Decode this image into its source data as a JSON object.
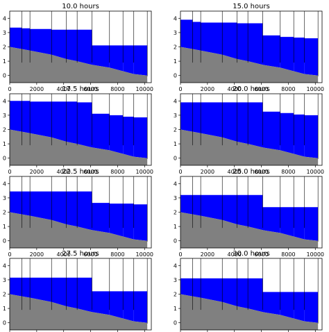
{
  "figure": {
    "background": "#ffffff"
  },
  "colors": {
    "bed": "#808080",
    "water": "#0000ff",
    "walls": "#000000",
    "frame": "#000000"
  },
  "chart_data": [
    {
      "type": "area",
      "title": "10.0 hours",
      "xlim": [
        0,
        10500
      ],
      "ylim": [
        -0.5,
        4.5
      ],
      "xticks": [
        0,
        2000,
        4000,
        6000,
        8000,
        10000
      ],
      "yticks": [
        0,
        1,
        2,
        3,
        4
      ],
      "walls_x": [
        900,
        1500,
        3100,
        4200,
        5000,
        6100,
        7400,
        8400,
        9200
      ],
      "bed": [
        [
          0,
          2.0
        ],
        [
          900,
          1.85
        ],
        [
          1500,
          1.75
        ],
        [
          3100,
          1.45
        ],
        [
          4200,
          1.15
        ],
        [
          5000,
          1.0
        ],
        [
          6100,
          0.75
        ],
        [
          7400,
          0.55
        ],
        [
          8400,
          0.3
        ],
        [
          9200,
          0.1
        ],
        [
          10200,
          0.0
        ]
      ],
      "water": [
        [
          0,
          3.35
        ],
        [
          900,
          3.3
        ],
        [
          1500,
          3.25
        ],
        [
          3100,
          3.2
        ],
        [
          4200,
          3.2
        ],
        [
          5000,
          3.2
        ],
        [
          6100,
          2.1
        ],
        [
          7400,
          2.1
        ],
        [
          8400,
          2.1
        ],
        [
          9200,
          2.1
        ],
        [
          10200,
          2.1
        ]
      ]
    },
    {
      "type": "area",
      "title": "15.0 hours",
      "xlim": [
        0,
        10500
      ],
      "ylim": [
        -0.5,
        4.5
      ],
      "xticks": [
        0,
        2000,
        4000,
        6000,
        8000,
        10000
      ],
      "yticks": [
        0,
        1,
        2,
        3,
        4
      ],
      "walls_x": [
        900,
        1500,
        3100,
        4200,
        5000,
        6100,
        7400,
        8400,
        9200
      ],
      "bed": [
        [
          0,
          2.0
        ],
        [
          900,
          1.85
        ],
        [
          1500,
          1.75
        ],
        [
          3100,
          1.45
        ],
        [
          4200,
          1.15
        ],
        [
          5000,
          1.0
        ],
        [
          6100,
          0.75
        ],
        [
          7400,
          0.55
        ],
        [
          8400,
          0.3
        ],
        [
          9200,
          0.1
        ],
        [
          10200,
          0.0
        ]
      ],
      "water": [
        [
          0,
          3.9
        ],
        [
          900,
          3.75
        ],
        [
          1500,
          3.7
        ],
        [
          3100,
          3.7
        ],
        [
          4200,
          3.65
        ],
        [
          5000,
          3.65
        ],
        [
          6100,
          2.8
        ],
        [
          7400,
          2.7
        ],
        [
          8400,
          2.65
        ],
        [
          9200,
          2.6
        ],
        [
          10200,
          2.6
        ]
      ]
    },
    {
      "type": "area",
      "title": "17.5 hours",
      "xlim": [
        0,
        10500
      ],
      "ylim": [
        -0.5,
        4.5
      ],
      "xticks": [
        0,
        2000,
        4000,
        6000,
        8000,
        10000
      ],
      "yticks": [
        0,
        1,
        2,
        3,
        4
      ],
      "walls_x": [
        900,
        1500,
        3100,
        4200,
        5000,
        6100,
        7400,
        8400,
        9200
      ],
      "bed": [
        [
          0,
          2.0
        ],
        [
          900,
          1.85
        ],
        [
          1500,
          1.75
        ],
        [
          3100,
          1.45
        ],
        [
          4200,
          1.15
        ],
        [
          5000,
          1.0
        ],
        [
          6100,
          0.75
        ],
        [
          7400,
          0.55
        ],
        [
          8400,
          0.3
        ],
        [
          9200,
          0.1
        ],
        [
          10200,
          0.0
        ]
      ],
      "water": [
        [
          0,
          4.0
        ],
        [
          900,
          4.0
        ],
        [
          1500,
          3.95
        ],
        [
          3100,
          3.95
        ],
        [
          4200,
          3.95
        ],
        [
          5000,
          3.9
        ],
        [
          6100,
          3.1
        ],
        [
          7400,
          3.0
        ],
        [
          8400,
          2.9
        ],
        [
          9200,
          2.85
        ],
        [
          10200,
          2.85
        ]
      ]
    },
    {
      "type": "area",
      "title": "20.0 hours",
      "xlim": [
        0,
        10500
      ],
      "ylim": [
        -0.5,
        4.5
      ],
      "xticks": [
        0,
        2000,
        4000,
        6000,
        8000,
        10000
      ],
      "yticks": [
        0,
        1,
        2,
        3,
        4
      ],
      "walls_x": [
        900,
        1500,
        3100,
        4200,
        5000,
        6100,
        7400,
        8400,
        9200
      ],
      "bed": [
        [
          0,
          2.0
        ],
        [
          900,
          1.85
        ],
        [
          1500,
          1.75
        ],
        [
          3100,
          1.45
        ],
        [
          4200,
          1.15
        ],
        [
          5000,
          1.0
        ],
        [
          6100,
          0.75
        ],
        [
          7400,
          0.55
        ],
        [
          8400,
          0.3
        ],
        [
          9200,
          0.1
        ],
        [
          10200,
          0.0
        ]
      ],
      "water": [
        [
          0,
          3.9
        ],
        [
          900,
          3.9
        ],
        [
          1500,
          3.9
        ],
        [
          3100,
          3.9
        ],
        [
          4200,
          3.9
        ],
        [
          5000,
          3.9
        ],
        [
          6100,
          3.25
        ],
        [
          7400,
          3.15
        ],
        [
          8400,
          3.05
        ],
        [
          9200,
          3.0
        ],
        [
          10200,
          3.0
        ]
      ]
    },
    {
      "type": "area",
      "title": "22.5 hours",
      "xlim": [
        0,
        10500
      ],
      "ylim": [
        -0.5,
        4.5
      ],
      "xticks": [
        0,
        2000,
        4000,
        6000,
        8000,
        10000
      ],
      "yticks": [
        0,
        1,
        2,
        3,
        4
      ],
      "walls_x": [
        900,
        1500,
        3100,
        4200,
        5000,
        6100,
        7400,
        8400,
        9200
      ],
      "bed": [
        [
          0,
          2.0
        ],
        [
          900,
          1.85
        ],
        [
          1500,
          1.75
        ],
        [
          3100,
          1.45
        ],
        [
          4200,
          1.15
        ],
        [
          5000,
          1.0
        ],
        [
          6100,
          0.75
        ],
        [
          7400,
          0.55
        ],
        [
          8400,
          0.3
        ],
        [
          9200,
          0.1
        ],
        [
          10200,
          0.0
        ]
      ],
      "water": [
        [
          0,
          3.45
        ],
        [
          900,
          3.45
        ],
        [
          1500,
          3.45
        ],
        [
          3100,
          3.45
        ],
        [
          4200,
          3.45
        ],
        [
          5000,
          3.45
        ],
        [
          6100,
          2.65
        ],
        [
          7400,
          2.6
        ],
        [
          8400,
          2.6
        ],
        [
          9200,
          2.55
        ],
        [
          10200,
          2.55
        ]
      ]
    },
    {
      "type": "area",
      "title": "25.0 hours",
      "xlim": [
        0,
        10500
      ],
      "ylim": [
        -0.5,
        4.5
      ],
      "xticks": [
        0,
        2000,
        4000,
        6000,
        8000,
        10000
      ],
      "yticks": [
        0,
        1,
        2,
        3,
        4
      ],
      "walls_x": [
        900,
        1500,
        3100,
        4200,
        5000,
        6100,
        7400,
        8400,
        9200
      ],
      "bed": [
        [
          0,
          2.0
        ],
        [
          900,
          1.85
        ],
        [
          1500,
          1.75
        ],
        [
          3100,
          1.45
        ],
        [
          4200,
          1.15
        ],
        [
          5000,
          1.0
        ],
        [
          6100,
          0.75
        ],
        [
          7400,
          0.55
        ],
        [
          8400,
          0.3
        ],
        [
          9200,
          0.1
        ],
        [
          10200,
          0.0
        ]
      ],
      "water": [
        [
          0,
          3.2
        ],
        [
          900,
          3.2
        ],
        [
          1500,
          3.2
        ],
        [
          3100,
          3.2
        ],
        [
          4200,
          3.2
        ],
        [
          5000,
          3.2
        ],
        [
          6100,
          2.35
        ],
        [
          7400,
          2.35
        ],
        [
          8400,
          2.35
        ],
        [
          9200,
          2.35
        ],
        [
          10200,
          2.35
        ]
      ]
    },
    {
      "type": "area",
      "title": "27.5 hours",
      "xlim": [
        0,
        10500
      ],
      "ylim": [
        -0.5,
        4.5
      ],
      "xticks": [
        0,
        2000,
        4000,
        6000,
        8000,
        10000
      ],
      "yticks": [
        0,
        1,
        2,
        3,
        4
      ],
      "walls_x": [
        900,
        1500,
        3100,
        4200,
        5000,
        6100,
        7400,
        8400,
        9200
      ],
      "bed": [
        [
          0,
          2.0
        ],
        [
          900,
          1.85
        ],
        [
          1500,
          1.75
        ],
        [
          3100,
          1.45
        ],
        [
          4200,
          1.15
        ],
        [
          5000,
          1.0
        ],
        [
          6100,
          0.75
        ],
        [
          7400,
          0.55
        ],
        [
          8400,
          0.3
        ],
        [
          9200,
          0.1
        ],
        [
          10200,
          0.0
        ]
      ],
      "water": [
        [
          0,
          3.15
        ],
        [
          900,
          3.15
        ],
        [
          1500,
          3.15
        ],
        [
          3100,
          3.15
        ],
        [
          4200,
          3.15
        ],
        [
          5000,
          3.15
        ],
        [
          6100,
          2.2
        ],
        [
          7400,
          2.2
        ],
        [
          8400,
          2.2
        ],
        [
          9200,
          2.2
        ],
        [
          10200,
          2.2
        ]
      ]
    },
    {
      "type": "area",
      "title": "30.0 hours",
      "xlim": [
        0,
        10500
      ],
      "ylim": [
        -0.5,
        4.5
      ],
      "xticks": [
        0,
        2000,
        4000,
        6000,
        8000,
        10000
      ],
      "yticks": [
        0,
        1,
        2,
        3,
        4
      ],
      "walls_x": [
        900,
        1500,
        3100,
        4200,
        5000,
        6100,
        7400,
        8400,
        9200
      ],
      "bed": [
        [
          0,
          2.0
        ],
        [
          900,
          1.85
        ],
        [
          1500,
          1.75
        ],
        [
          3100,
          1.45
        ],
        [
          4200,
          1.15
        ],
        [
          5000,
          1.0
        ],
        [
          6100,
          0.75
        ],
        [
          7400,
          0.55
        ],
        [
          8400,
          0.3
        ],
        [
          9200,
          0.1
        ],
        [
          10200,
          0.0
        ]
      ],
      "water": [
        [
          0,
          3.1
        ],
        [
          900,
          3.1
        ],
        [
          1500,
          3.1
        ],
        [
          3100,
          3.1
        ],
        [
          4200,
          3.1
        ],
        [
          5000,
          3.1
        ],
        [
          6100,
          2.15
        ],
        [
          7400,
          2.15
        ],
        [
          8400,
          2.15
        ],
        [
          9200,
          2.15
        ],
        [
          10200,
          2.15
        ]
      ]
    }
  ]
}
